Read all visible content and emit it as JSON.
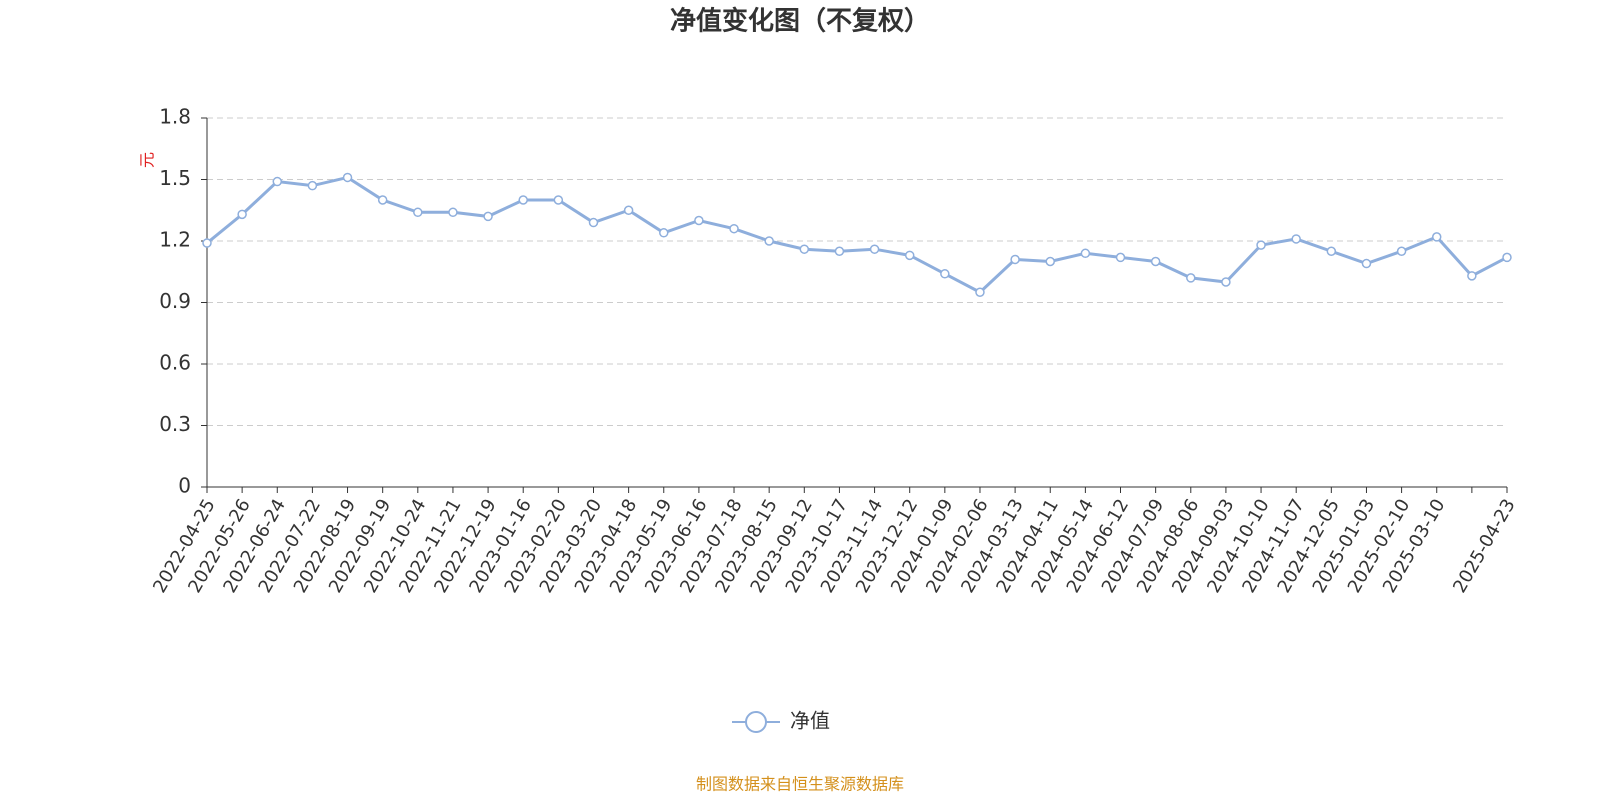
{
  "chart_data": {
    "type": "line",
    "title": "净值变化图（不复权）",
    "y_label": "元",
    "categories": [
      "2022-04-25",
      "2022-05-26",
      "2022-06-24",
      "2022-07-22",
      "2022-08-19",
      "2022-09-19",
      "2022-10-24",
      "2022-11-21",
      "2022-12-19",
      "2023-01-16",
      "2023-02-20",
      "2023-03-20",
      "2023-04-18",
      "2023-05-19",
      "2023-06-16",
      "2023-07-18",
      "2023-08-15",
      "2023-09-12",
      "2023-10-17",
      "2023-11-14",
      "2023-12-12",
      "2024-01-09",
      "2024-02-06",
      "2024-03-13",
      "2024-04-11",
      "2024-05-14",
      "2024-06-12",
      "2024-07-09",
      "2024-08-06",
      "2024-09-03",
      "2024-10-10",
      "2024-11-07",
      "2024-12-05",
      "2025-01-03",
      "2025-02-10",
      "2025-03-10",
      null,
      "2025-04-23"
    ],
    "series": [
      {
        "name": "净值",
        "color": "#8eaedc",
        "values": [
          1.19,
          1.33,
          1.49,
          1.47,
          1.51,
          1.4,
          1.34,
          1.34,
          1.32,
          1.4,
          1.4,
          1.29,
          1.35,
          1.24,
          1.3,
          1.26,
          1.2,
          1.16,
          1.15,
          1.16,
          1.13,
          1.04,
          0.95,
          1.11,
          1.1,
          1.14,
          1.12,
          1.1,
          1.02,
          1.0,
          1.18,
          1.21,
          1.15,
          1.09,
          1.15,
          1.22,
          1.03,
          1.12
        ]
      }
    ],
    "ylim": [
      0,
      1.8
    ],
    "yticks": [
      0,
      0.3,
      0.6,
      0.9,
      1.2,
      1.5,
      1.8
    ],
    "grid": true,
    "legend": "bottom",
    "source": "制图数据来自恒生聚源数据库"
  }
}
